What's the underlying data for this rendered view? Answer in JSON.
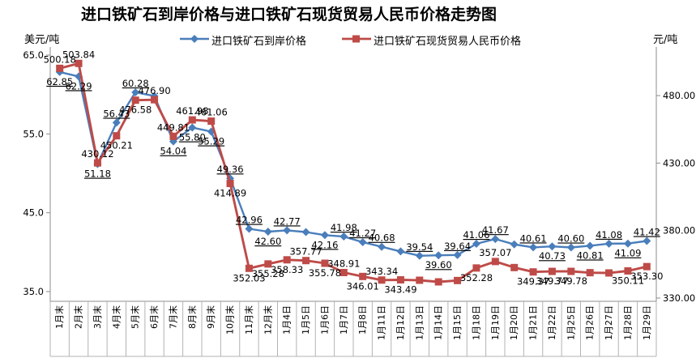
{
  "chart_data": {
    "type": "line",
    "title": "进口铁矿石到岸价格与进口铁矿石现货贸易人民币价格走势图",
    "legend_position": "top",
    "gridlines": false,
    "categories": [
      "1月末",
      "2月末",
      "3月末",
      "4月末",
      "5月末",
      "6月末",
      "7月末",
      "8月末",
      "9月末",
      "10月末",
      "11月末",
      "12月末",
      "1月4日",
      "1月5日",
      "1月6日",
      "1月7日",
      "1月8日",
      "1月11日",
      "1月12日",
      "1月13日",
      "1月14日",
      "1月15日",
      "1月18日",
      "1月19日",
      "1月20日",
      "1月21日",
      "1月22日",
      "1月25日",
      "1月26日",
      "1月27日",
      "1月28日",
      "1月29日"
    ],
    "left_axis": {
      "title": "美元/吨",
      "min": 35,
      "max": 65,
      "tick_values": [
        65,
        55,
        45,
        35
      ],
      "tick_labels": [
        "65.0",
        "55.0",
        "45.0",
        "35.0"
      ]
    },
    "right_axis": {
      "title": "元/吨",
      "min": 330,
      "max": 480,
      "tick_values": [
        480,
        430,
        380,
        330
      ],
      "tick_labels": [
        "480.00",
        "430.00",
        "380.00",
        "330.00"
      ]
    },
    "series": [
      {
        "name": "进口铁矿石到岸价格",
        "axis": "left",
        "color": "#4a7ebb",
        "marker": "diamond",
        "underline_labels": true,
        "values": [
          62.85,
          62.29,
          51.18,
          56.43,
          60.28,
          59.8,
          54.04,
          55.8,
          55.29,
          49.36,
          42.96,
          42.6,
          42.77,
          42.55,
          42.16,
          41.98,
          41.27,
          40.68,
          40.1,
          39.54,
          39.6,
          39.64,
          41.06,
          41.67,
          40.99,
          40.61,
          40.73,
          40.6,
          40.81,
          41.08,
          41.09,
          41.42
        ],
        "labels": [
          "62.85",
          "62.29",
          "51.18",
          "56.43",
          "60.28",
          null,
          "54.04",
          "55.80",
          "55.29",
          "49.36",
          "42.96",
          "42.60",
          "42.77",
          null,
          "42.16",
          "41.98",
          "41.27",
          "40.68",
          null,
          "39.54",
          "39.60",
          "39.64",
          "41.06",
          "41.67",
          null,
          "40.61",
          "40.73",
          "40.60",
          "40.81",
          "41.08",
          "41.09",
          "41.42"
        ],
        "label_pos": [
          "b",
          "b",
          "b",
          "a",
          "a",
          "a",
          "b",
          "b",
          "b",
          "a",
          "a",
          "b",
          "a",
          "a",
          "b",
          "a",
          "a",
          "a",
          "a",
          "a",
          "b",
          "a",
          "a",
          "a",
          "a",
          "a",
          "b",
          "a",
          "b",
          "a",
          "b",
          "a"
        ]
      },
      {
        "name": "进口铁矿石现货贸易人民币价格",
        "axis": "right",
        "color": "#be4b48",
        "marker": "square",
        "underline_labels": false,
        "values": [
          500.18,
          503.84,
          430.12,
          450.21,
          476.58,
          476.9,
          449.81,
          461.98,
          461.06,
          414.89,
          352.03,
          355.28,
          358.33,
          357.77,
          355.78,
          348.91,
          346.01,
          343.34,
          343.49,
          343.2,
          342.0,
          343.0,
          352.28,
          357.07,
          352.6,
          349.37,
          349.77,
          349.78,
          348.8,
          348.6,
          350.11,
          353.3
        ],
        "labels": [
          "500.18",
          "503.84",
          "430.12",
          "450.21",
          "476.58",
          "476.90",
          "449.81",
          "461.98",
          "461.06",
          "414.89",
          "352.03",
          "355.28",
          "358.33",
          "357.77",
          "355.78",
          "348.91",
          "346.01",
          "343.34",
          "343.49",
          null,
          null,
          null,
          "352.28",
          "357.07",
          null,
          "349.37",
          "349.77",
          "349.78",
          null,
          null,
          "350.11",
          "353.30"
        ],
        "label_pos": [
          "a",
          "a",
          "a",
          "b",
          "b",
          "a",
          "a",
          "a",
          "a",
          "b",
          "b",
          "b",
          "b",
          "a",
          "b",
          "a",
          "b",
          "a",
          "b",
          "b",
          "b",
          "b",
          "b",
          "a",
          "b",
          "b",
          "b",
          "b",
          "b",
          "b",
          "b",
          "b"
        ]
      }
    ]
  }
}
